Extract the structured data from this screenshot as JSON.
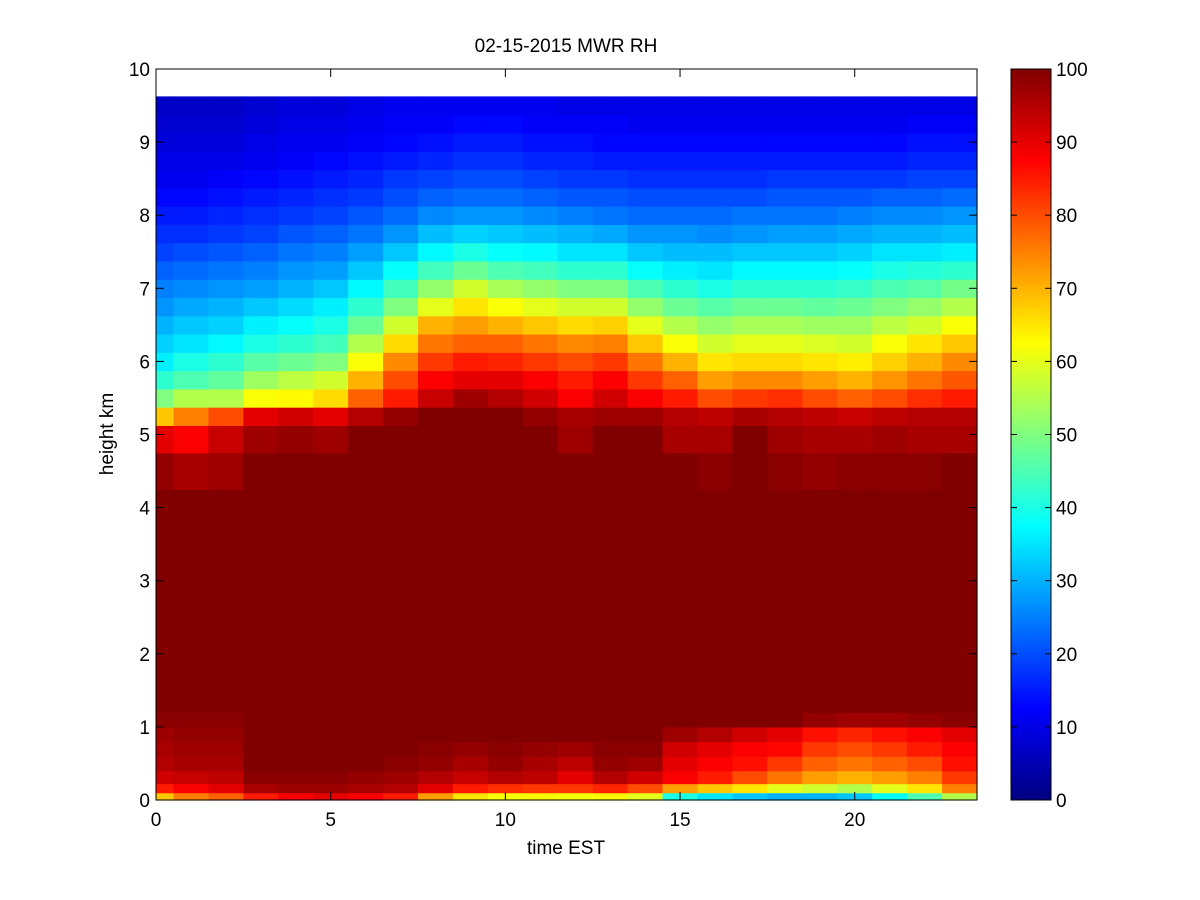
{
  "chart_data": {
    "type": "heatmap",
    "title": "02-15-2015 MWR RH",
    "xlabel": "time EST",
    "ylabel": "height km",
    "xlim": [
      0,
      23.5
    ],
    "ylim": [
      0,
      10
    ],
    "x_ticks": [
      "0",
      "5",
      "10",
      "15",
      "20"
    ],
    "y_ticks": [
      "0",
      "1",
      "2",
      "3",
      "4",
      "5",
      "6",
      "7",
      "8",
      "9",
      "10"
    ],
    "colorbar": {
      "colormap": "jet",
      "range": [
        0,
        100
      ],
      "ticks": [
        "0",
        "10",
        "20",
        "30",
        "40",
        "50",
        "60",
        "70",
        "80",
        "90",
        "100"
      ]
    },
    "time_hours": [
      0,
      1,
      2,
      3,
      4,
      5,
      6,
      7,
      8,
      9,
      10,
      11,
      12,
      13,
      14,
      15,
      16,
      17,
      18,
      19,
      20,
      21,
      22,
      23
    ],
    "heights_km": [
      0.05,
      0.15,
      0.3,
      0.5,
      0.7,
      0.9,
      1.1,
      1.3,
      1.5,
      2.0,
      2.5,
      3.0,
      3.5,
      4.0,
      4.5,
      5.0,
      5.25,
      5.5,
      5.75,
      6.0,
      6.25,
      6.5,
      6.75,
      7.0,
      7.25,
      7.5,
      7.75,
      8.0,
      8.25,
      8.5,
      8.75,
      9.0,
      9.25,
      9.5
    ],
    "rh_percent": [
      [
        68,
        85,
        92,
        95,
        96,
        97,
        99,
        100,
        100,
        100,
        100,
        100,
        100,
        100,
        98,
        90,
        68,
        50,
        42,
        36,
        33,
        30,
        27,
        25,
        22,
        19,
        17,
        15,
        13,
        11,
        10,
        9,
        8,
        7
      ],
      [
        75,
        88,
        93,
        96,
        97,
        98,
        99,
        100,
        100,
        100,
        100,
        100,
        100,
        100,
        96,
        88,
        75,
        55,
        45,
        40,
        35,
        32,
        29,
        26,
        23,
        20,
        17,
        15,
        13,
        11,
        10,
        9,
        8,
        7
      ],
      [
        78,
        90,
        94,
        96,
        97,
        98,
        99,
        100,
        100,
        100,
        100,
        100,
        100,
        100,
        97,
        93,
        80,
        55,
        47,
        42,
        37,
        33,
        30,
        27,
        24,
        21,
        18,
        16,
        14,
        12,
        10,
        9,
        8,
        7
      ],
      [
        85,
        96,
        99,
        100,
        100,
        100,
        100,
        100,
        100,
        100,
        100,
        100,
        100,
        100,
        100,
        97,
        90,
        62,
        53,
        46,
        40,
        36,
        32,
        28,
        25,
        22,
        19,
        17,
        15,
        13,
        11,
        10,
        9,
        8
      ],
      [
        88,
        97,
        99,
        100,
        100,
        100,
        100,
        100,
        100,
        100,
        100,
        100,
        100,
        100,
        100,
        98,
        92,
        63,
        56,
        48,
        42,
        38,
        34,
        30,
        27,
        24,
        21,
        18,
        16,
        14,
        12,
        11,
        10,
        9
      ],
      [
        90,
        97,
        99,
        100,
        100,
        100,
        100,
        100,
        100,
        100,
        100,
        100,
        100,
        100,
        100,
        97,
        90,
        66,
        58,
        50,
        44,
        40,
        36,
        32,
        28,
        25,
        22,
        19,
        17,
        15,
        13,
        11,
        10,
        9
      ],
      [
        88,
        96,
        98,
        100,
        100,
        100,
        100,
        100,
        100,
        100,
        100,
        100,
        100,
        100,
        100,
        100,
        95,
        78,
        70,
        62,
        55,
        48,
        42,
        37,
        32,
        28,
        24,
        21,
        18,
        16,
        14,
        12,
        11,
        10
      ],
      [
        85,
        95,
        97,
        99,
        100,
        100,
        100,
        100,
        100,
        100,
        100,
        100,
        100,
        100,
        100,
        100,
        98,
        85,
        80,
        74,
        66,
        58,
        50,
        44,
        38,
        32,
        27,
        23,
        20,
        18,
        15,
        13,
        12,
        11
      ],
      [
        72,
        90,
        95,
        98,
        99,
        100,
        100,
        100,
        100,
        100,
        100,
        100,
        100,
        100,
        100,
        100,
        100,
        93,
        88,
        82,
        76,
        70,
        60,
        52,
        44,
        37,
        31,
        26,
        22,
        19,
        16,
        14,
        12,
        11
      ],
      [
        65,
        85,
        93,
        96,
        98,
        100,
        100,
        100,
        100,
        100,
        100,
        100,
        100,
        100,
        100,
        100,
        100,
        97,
        90,
        85,
        78,
        72,
        65,
        58,
        48,
        40,
        33,
        27,
        23,
        20,
        17,
        15,
        13,
        11
      ],
      [
        62,
        83,
        95,
        98,
        99,
        100,
        100,
        100,
        100,
        100,
        100,
        100,
        100,
        100,
        100,
        100,
        100,
        95,
        90,
        84,
        78,
        70,
        62,
        54,
        45,
        38,
        32,
        27,
        23,
        20,
        17,
        15,
        13,
        11
      ],
      [
        63,
        82,
        94,
        96,
        98,
        100,
        100,
        100,
        100,
        100,
        100,
        100,
        100,
        100,
        100,
        100,
        98,
        92,
        88,
        82,
        76,
        68,
        60,
        52,
        44,
        37,
        31,
        26,
        22,
        19,
        16,
        14,
        12,
        11
      ],
      [
        62,
        82,
        90,
        94,
        97,
        100,
        100,
        100,
        100,
        100,
        100,
        100,
        100,
        100,
        100,
        97,
        96,
        88,
        85,
        80,
        74,
        66,
        58,
        50,
        42,
        35,
        30,
        25,
        21,
        18,
        16,
        14,
        12,
        10
      ],
      [
        63,
        84,
        95,
        98,
        99,
        100,
        100,
        100,
        100,
        100,
        100,
        100,
        100,
        100,
        100,
        100,
        97,
        92,
        88,
        82,
        75,
        67,
        58,
        50,
        42,
        35,
        29,
        24,
        21,
        18,
        15,
        13,
        12,
        10
      ],
      [
        60,
        80,
        92,
        97,
        99,
        100,
        100,
        100,
        100,
        100,
        100,
        100,
        100,
        100,
        100,
        100,
        97,
        88,
        82,
        76,
        68,
        60,
        52,
        45,
        38,
        32,
        27,
        23,
        20,
        17,
        15,
        13,
        11,
        10
      ],
      [
        40,
        72,
        88,
        90,
        92,
        97,
        100,
        100,
        100,
        100,
        100,
        100,
        100,
        100,
        100,
        96,
        95,
        85,
        78,
        70,
        62,
        55,
        48,
        42,
        36,
        31,
        27,
        23,
        20,
        17,
        15,
        13,
        11,
        10
      ],
      [
        35,
        68,
        85,
        88,
        90,
        95,
        100,
        100,
        100,
        100,
        100,
        100,
        100,
        100,
        99,
        96,
        94,
        80,
        72,
        65,
        58,
        52,
        46,
        40,
        35,
        31,
        26,
        23,
        20,
        17,
        15,
        13,
        11,
        10
      ],
      [
        32,
        65,
        80,
        86,
        88,
        92,
        100,
        100,
        100,
        100,
        100,
        100,
        100,
        100,
        100,
        100,
        96,
        82,
        74,
        66,
        60,
        54,
        48,
        42,
        37,
        32,
        27,
        24,
        20,
        17,
        15,
        13,
        11,
        10
      ],
      [
        30,
        60,
        76,
        82,
        87,
        90,
        100,
        100,
        100,
        100,
        100,
        100,
        100,
        100,
        99,
        97,
        95,
        83,
        74,
        66,
        60,
        54,
        48,
        42,
        37,
        32,
        28,
        24,
        21,
        18,
        15,
        13,
        11,
        10
      ],
      [
        30,
        58,
        72,
        78,
        82,
        86,
        98,
        100,
        100,
        100,
        100,
        100,
        100,
        100,
        98,
        96,
        94,
        80,
        72,
        65,
        59,
        53,
        47,
        42,
        37,
        32,
        28,
        24,
        21,
        18,
        15,
        13,
        11,
        10
      ],
      [
        32,
        55,
        70,
        76,
        80,
        84,
        97,
        100,
        100,
        100,
        100,
        100,
        100,
        100,
        99,
        96,
        93,
        78,
        70,
        64,
        58,
        53,
        48,
        43,
        38,
        33,
        29,
        25,
        21,
        18,
        15,
        13,
        11,
        10
      ],
      [
        38,
        60,
        72,
        78,
        82,
        86,
        97,
        100,
        100,
        100,
        100,
        100,
        100,
        100,
        99,
        97,
        94,
        80,
        73,
        67,
        62,
        56,
        50,
        45,
        40,
        35,
        30,
        26,
        22,
        18,
        15,
        13,
        11,
        10
      ],
      [
        45,
        65,
        75,
        80,
        85,
        88,
        98,
        100,
        100,
        100,
        100,
        100,
        100,
        100,
        99,
        96,
        95,
        83,
        76,
        70,
        65,
        58,
        52,
        46,
        41,
        35,
        30,
        26,
        22,
        19,
        16,
        14,
        12,
        10
      ],
      [
        55,
        75,
        82,
        86,
        88,
        90,
        99,
        100,
        100,
        100,
        100,
        100,
        100,
        100,
        100,
        96,
        95,
        85,
        79,
        74,
        68,
        62,
        55,
        49,
        42,
        36,
        31,
        27,
        23,
        19,
        16,
        14,
        12,
        10
      ]
    ]
  }
}
